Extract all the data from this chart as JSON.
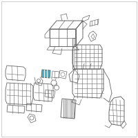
{
  "background_color": "#ffffff",
  "border_color": "#bbbbbb",
  "line_color": "#777777",
  "highlight_color": "#3ab5d0",
  "dark_line": "#666666",
  "fig_width": 2.0,
  "fig_height": 2.0,
  "dpi": 100
}
